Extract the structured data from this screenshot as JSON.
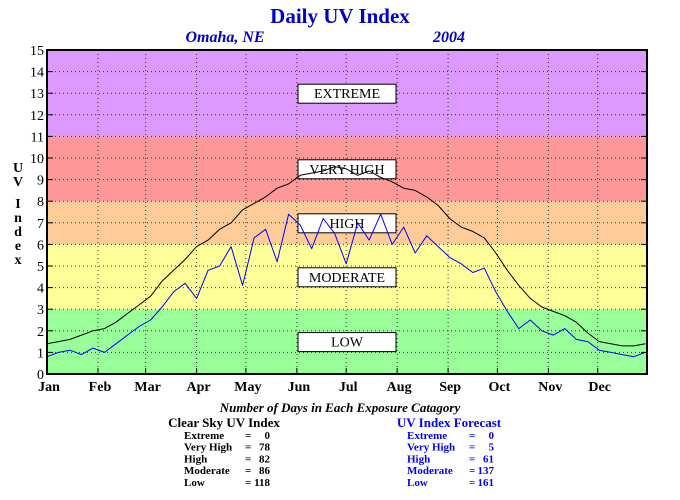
{
  "chart_data": {
    "type": "line",
    "title": "Daily UV Index",
    "subtitle_location": "Omaha, NE",
    "subtitle_year": "2004",
    "ylabel": "UV Index",
    "xlabel": "",
    "ylim": [
      0,
      15
    ],
    "yticks": [
      "0",
      "1",
      "2",
      "3",
      "4",
      "5",
      "6",
      "7",
      "8",
      "9",
      "10",
      "11",
      "12",
      "13",
      "14",
      "15"
    ],
    "xlim": [
      1,
      366
    ],
    "months": [
      "Jan",
      "Feb",
      "Mar",
      "Apr",
      "May",
      "Jun",
      "Jul",
      "Aug",
      "Sep",
      "Oct",
      "Nov",
      "Dec"
    ],
    "month_start_days": [
      1,
      32,
      61,
      92,
      122,
      153,
      183,
      214,
      245,
      275,
      306,
      336
    ],
    "grid": true,
    "bands": [
      {
        "label": "LOW",
        "from": 0,
        "to": 3,
        "color": "#99ff99"
      },
      {
        "label": "MODERATE",
        "from": 3,
        "to": 6,
        "color": "#ffff99"
      },
      {
        "label": "HIGH",
        "from": 6,
        "to": 8,
        "color": "#ffcc99"
      },
      {
        "label": "VERY HIGH",
        "from": 8,
        "to": 11,
        "color": "#ff9999"
      },
      {
        "label": "EXTREME",
        "from": 11,
        "to": 15,
        "color": "#dd99ff"
      }
    ],
    "series": [
      {
        "name": "Clear Sky UV Index",
        "color": "#000000",
        "x": [
          1,
          8,
          15,
          22,
          29,
          36,
          43,
          50,
          57,
          64,
          71,
          78,
          85,
          92,
          99,
          106,
          113,
          120,
          127,
          134,
          141,
          148,
          155,
          162,
          169,
          176,
          183,
          190,
          197,
          204,
          211,
          218,
          225,
          232,
          239,
          246,
          253,
          260,
          267,
          274,
          281,
          288,
          295,
          302,
          309,
          316,
          323,
          330,
          337,
          344,
          351,
          358,
          365
        ],
        "values": [
          1.4,
          1.5,
          1.6,
          1.8,
          2.0,
          2.1,
          2.4,
          2.8,
          3.2,
          3.6,
          4.3,
          4.8,
          5.3,
          5.9,
          6.2,
          6.7,
          7.0,
          7.6,
          7.9,
          8.2,
          8.6,
          8.8,
          9.2,
          9.3,
          9.4,
          9.6,
          9.5,
          9.2,
          9.4,
          9.1,
          8.9,
          8.6,
          8.5,
          8.2,
          7.8,
          7.2,
          6.8,
          6.6,
          6.3,
          5.6,
          4.8,
          4.1,
          3.5,
          3.1,
          2.9,
          2.7,
          2.4,
          1.9,
          1.5,
          1.4,
          1.3,
          1.3,
          1.4
        ]
      },
      {
        "name": "UV Index Forecast",
        "color": "#0000ff",
        "x": [
          1,
          8,
          15,
          22,
          29,
          36,
          43,
          50,
          57,
          64,
          71,
          78,
          85,
          92,
          99,
          106,
          113,
          120,
          127,
          134,
          141,
          148,
          155,
          162,
          169,
          176,
          183,
          190,
          197,
          204,
          211,
          218,
          225,
          232,
          239,
          246,
          253,
          260,
          267,
          274,
          281,
          288,
          295,
          302,
          309,
          316,
          323,
          330,
          337,
          344,
          351,
          358,
          365
        ],
        "values": [
          0.8,
          1.0,
          1.1,
          0.9,
          1.2,
          1.0,
          1.4,
          1.8,
          2.2,
          2.5,
          3.1,
          3.8,
          4.2,
          3.5,
          4.8,
          5.0,
          5.9,
          4.1,
          6.3,
          6.7,
          5.2,
          7.4,
          6.9,
          5.8,
          7.2,
          6.5,
          5.1,
          7.0,
          6.2,
          7.4,
          6.0,
          6.8,
          5.6,
          6.4,
          5.9,
          5.4,
          5.1,
          4.7,
          4.9,
          3.8,
          2.9,
          2.1,
          2.5,
          2.0,
          1.8,
          2.1,
          1.6,
          1.5,
          1.1,
          1.0,
          0.9,
          0.8,
          1.0
        ]
      }
    ],
    "summary": {
      "heading": "Number of Days in Each Exposure Catagory",
      "clear_sky": {
        "title": "Clear Sky UV Index",
        "rows": [
          {
            "label": "Extreme",
            "value": "0"
          },
          {
            "label": "Very High",
            "value": "78"
          },
          {
            "label": "High",
            "value": "82"
          },
          {
            "label": "Moderate",
            "value": "86"
          },
          {
            "label": "Low",
            "value": "118"
          }
        ]
      },
      "forecast": {
        "title": "UV Index Forecast",
        "rows": [
          {
            "label": "Extreme",
            "value": "0"
          },
          {
            "label": "Very High",
            "value": "5"
          },
          {
            "label": "High",
            "value": "61"
          },
          {
            "label": "Moderate",
            "value": "137"
          },
          {
            "label": "Low",
            "value": "161"
          }
        ]
      }
    }
  },
  "colors": {
    "title": "#0000cc",
    "forecast_text": "#0000ff",
    "frame": "#000000"
  }
}
